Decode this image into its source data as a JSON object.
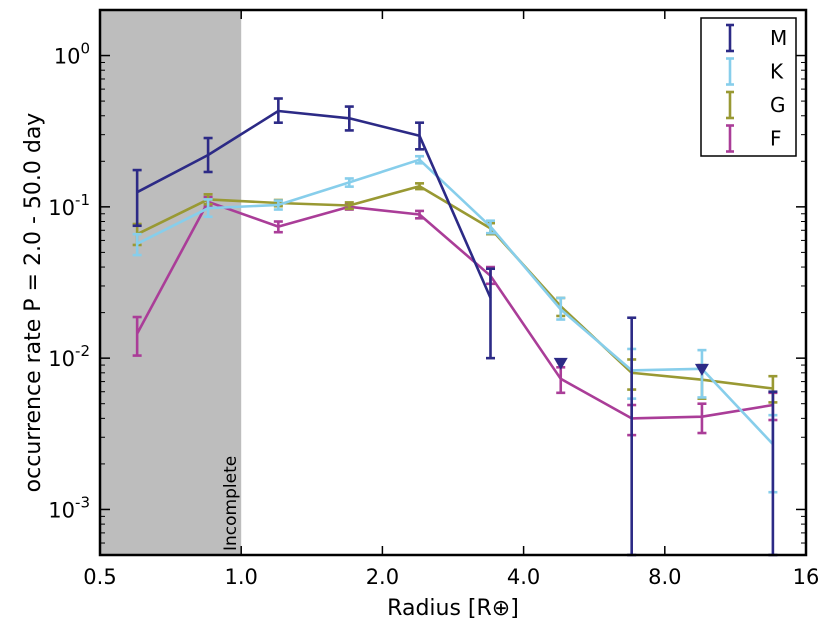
{
  "chart_data": {
    "type": "line",
    "title": "",
    "xlabel": "Radius [R⊕]",
    "ylabel": "occurrence rate P = 2.0 - 50.0 day",
    "xscale": "log2",
    "yscale": "log10",
    "xlim": [
      0.5,
      16
    ],
    "ylim": [
      0.0005,
      2
    ],
    "x_ticks": [
      0.5,
      1.0,
      2.0,
      4.0,
      8.0,
      16
    ],
    "x_tick_labels": [
      "0.5",
      "1.0",
      "2.0",
      "4.0",
      "8.0",
      "16"
    ],
    "y_ticks": [
      1,
      0.1,
      0.01,
      0.001
    ],
    "y_tick_labels": [
      {
        "base": "10",
        "exp": "0"
      },
      {
        "base": "10",
        "exp": "-1"
      },
      {
        "base": "10",
        "exp": "-2"
      },
      {
        "base": "10",
        "exp": "-3"
      }
    ],
    "x": [
      0.6,
      0.85,
      1.2,
      1.7,
      2.4,
      3.4,
      4.8,
      6.8,
      9.6,
      13.6
    ],
    "shaded_region": {
      "x_range": [
        0.5,
        1.0
      ],
      "label": "Incomplete",
      "color": "#bdbdbd"
    },
    "legend_position": "top-right",
    "series": [
      {
        "name": "M",
        "color": "#2c2a86",
        "values": [
          0.125,
          0.22,
          0.43,
          0.385,
          0.295,
          0.025,
          null,
          null,
          null,
          null
        ],
        "err_low": [
          0.075,
          0.17,
          0.36,
          0.32,
          0.24,
          0.01,
          null,
          0.0005,
          null,
          0.0005
        ],
        "err_high": [
          0.175,
          0.285,
          0.52,
          0.46,
          0.36,
          0.039,
          null,
          0.0185,
          null,
          0.006
        ],
        "upper_limits": [
          {
            "x": 4.8,
            "y": 0.0093
          },
          {
            "x": 9.6,
            "y": 0.0085
          }
        ]
      },
      {
        "name": "K",
        "color": "#87ceeb",
        "values": [
          0.057,
          0.098,
          0.103,
          0.145,
          0.205,
          0.074,
          0.021,
          0.0083,
          0.0085,
          0.0027
        ],
        "err_low": [
          0.048,
          0.086,
          0.096,
          0.136,
          0.194,
          0.067,
          0.018,
          0.0054,
          0.0055,
          0.0013
        ],
        "err_high": [
          0.066,
          0.112,
          0.11,
          0.154,
          0.216,
          0.081,
          0.025,
          0.0115,
          0.0113,
          0.0042
        ]
      },
      {
        "name": "G",
        "color": "#999933",
        "values": [
          0.066,
          0.112,
          0.106,
          0.102,
          0.137,
          0.072,
          0.022,
          0.008,
          0.0072,
          0.0063
        ],
        "err_low": [
          0.056,
          0.104,
          0.101,
          0.097,
          0.131,
          0.066,
          0.019,
          0.0062,
          0.0054,
          0.0051
        ],
        "err_high": [
          0.077,
          0.121,
          0.111,
          0.107,
          0.143,
          0.078,
          0.025,
          0.0098,
          0.009,
          0.0076
        ]
      },
      {
        "name": "F",
        "color": "#aa3d98",
        "values": [
          0.0145,
          0.108,
          0.074,
          0.1,
          0.089,
          0.035,
          0.0073,
          0.004,
          0.0041,
          0.0049
        ],
        "err_low": [
          0.0104,
          0.1,
          0.068,
          0.096,
          0.084,
          0.031,
          0.0059,
          0.0031,
          0.0032,
          0.0039
        ],
        "err_high": [
          0.0187,
          0.116,
          0.08,
          0.104,
          0.094,
          0.04,
          0.0087,
          0.0049,
          0.005,
          0.0059
        ]
      }
    ]
  }
}
